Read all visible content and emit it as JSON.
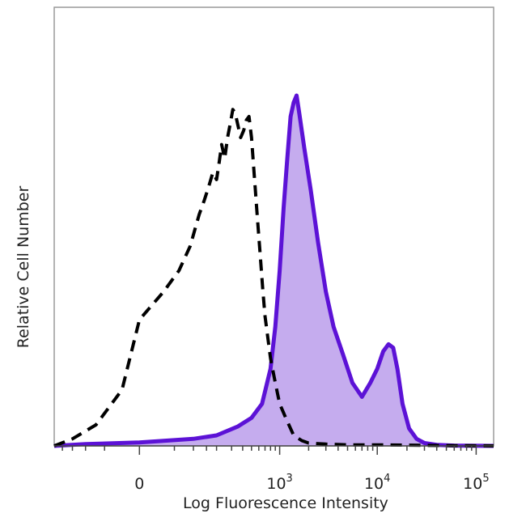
{
  "chart_data": {
    "type": "area",
    "xlabel": "Log Fluorescence Intensity",
    "ylabel": "Relative Cell Number",
    "x_scale": "biexponential",
    "xlim": [
      -250,
      150000
    ],
    "ylim": [
      0,
      100
    ],
    "grid": false,
    "legend": "none",
    "x_ticks": [
      {
        "value": 0,
        "base": "0",
        "exp": ""
      },
      {
        "value": 1000,
        "base": "10",
        "exp": "3"
      },
      {
        "value": 10000,
        "base": "10",
        "exp": "4"
      },
      {
        "value": 100000,
        "base": "10",
        "exp": "5"
      }
    ],
    "series": [
      {
        "style": "dashed",
        "color": "#000000",
        "fill": "none",
        "x": [
          -250,
          -150,
          -70,
          -20,
          0,
          30,
          60,
          90,
          120,
          140,
          160,
          180,
          200,
          215,
          230,
          250,
          270,
          290,
          310,
          330,
          350,
          380,
          410,
          440,
          470,
          500,
          540,
          580,
          620,
          660,
          700,
          800,
          900,
          1000,
          1200,
          1400,
          1700,
          2000,
          3000,
          5000,
          10000,
          20000,
          50000,
          150000
        ],
        "y": [
          0,
          2,
          6,
          16,
          36,
          44,
          50,
          57,
          66,
          70,
          74,
          78,
          76,
          81,
          86,
          82,
          88,
          92,
          96,
          95,
          92,
          88,
          90,
          93,
          94,
          88,
          76,
          65,
          55,
          45,
          37,
          25,
          18,
          12,
          7,
          3,
          1.5,
          0.8,
          0.5,
          0.3,
          0.3,
          0.2,
          0.1,
          0
        ]
      },
      {
        "style": "solid",
        "color": "#5c12d6",
        "fill": "#c5acee",
        "x": [
          -250,
          -100,
          0,
          100,
          200,
          350,
          500,
          650,
          800,
          900,
          1000,
          1100,
          1200,
          1300,
          1400,
          1500,
          1600,
          1800,
          2100,
          2500,
          3000,
          3600,
          4500,
          5600,
          7000,
          8500,
          10000,
          11500,
          13000,
          14500,
          16000,
          18000,
          21000,
          25000,
          30000,
          40000,
          60000,
          150000
        ],
        "y": [
          0,
          0.5,
          1,
          2,
          3,
          5.5,
          8,
          12,
          22,
          34,
          50,
          68,
          82,
          94,
          98,
          100,
          95,
          85,
          73,
          58,
          44,
          34,
          26,
          18,
          14,
          18,
          22,
          27,
          29,
          28,
          22,
          12,
          5,
          2,
          0.8,
          0.3,
          0.1,
          0
        ]
      }
    ]
  }
}
